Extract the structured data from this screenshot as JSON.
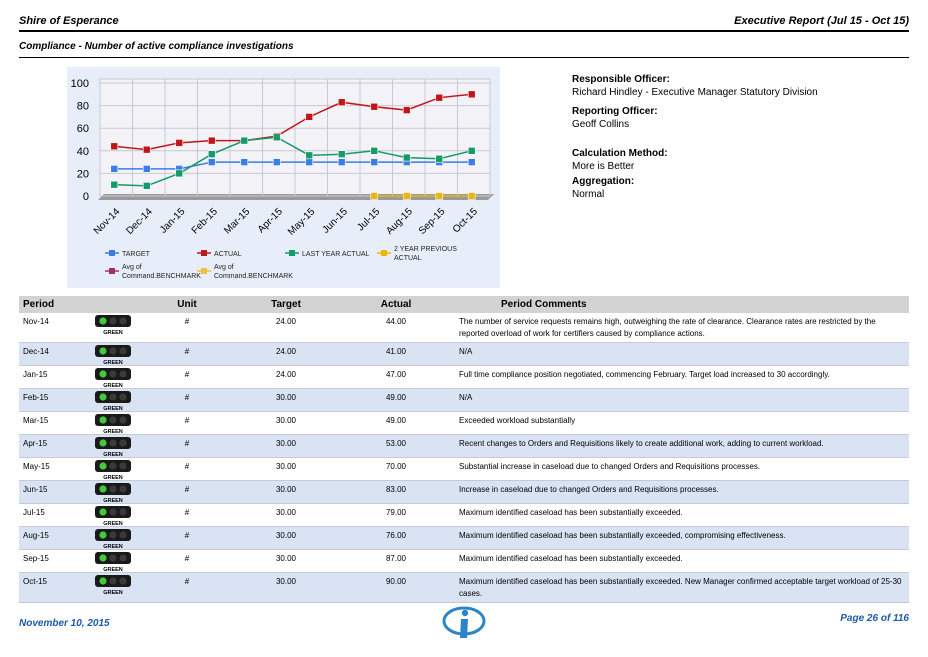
{
  "header": {
    "organisation": "Shire of Esperance",
    "report_title": "Executive Report (Jul 15 - Oct 15)"
  },
  "subtitle": "Compliance - Number of active compliance investigations",
  "colors": {
    "target": "#3a7de6",
    "actual": "#c0161b",
    "last_year": "#169a68",
    "two_year": "#e8b810",
    "benchmark": "#a0306e",
    "benchmark_avg": "#f0c040",
    "row_alt": "#d9e3f3",
    "footer": "#1e5aa8"
  },
  "chart_data": {
    "type": "line",
    "categories": [
      "Nov-14",
      "Dec-14",
      "Jan-15",
      "Feb-15",
      "Mar-15",
      "Apr-15",
      "May-15",
      "Jun-15",
      "Jul-15",
      "Aug-15",
      "Sep-15",
      "Oct-15"
    ],
    "ylim": [
      0,
      100
    ],
    "yticks": [
      0,
      20,
      40,
      60,
      80,
      100
    ],
    "series": [
      {
        "name": "TARGET",
        "color": "#3a7de6",
        "values": [
          24,
          24,
          24,
          30,
          30,
          30,
          30,
          30,
          30,
          30,
          30,
          30
        ]
      },
      {
        "name": "ACTUAL",
        "color": "#c0161b",
        "values": [
          44,
          41,
          47,
          49,
          49,
          53,
          70,
          83,
          79,
          76,
          87,
          90
        ]
      },
      {
        "name": "LAST YEAR ACTUAL",
        "color": "#169a68",
        "values": [
          10,
          9,
          20,
          37,
          49,
          52,
          36,
          37,
          40,
          34,
          33,
          40
        ]
      },
      {
        "name": "2 YEAR PREVIOUS ACTUAL",
        "color": "#e8b810",
        "values": [
          null,
          null,
          null,
          null,
          null,
          null,
          null,
          null,
          0,
          0,
          0,
          0
        ]
      }
    ],
    "legend": [
      {
        "label": "TARGET",
        "color": "#3a7de6"
      },
      {
        "label": "ACTUAL",
        "color": "#c0161b"
      },
      {
        "label": "LAST YEAR ACTUAL",
        "color": "#169a68"
      },
      {
        "label": "2 YEAR PREVIOUS ACTUAL",
        "color": "#e8b810"
      },
      {
        "label": "Avg of Command.BENCHMARK",
        "color": "#a0306e"
      },
      {
        "label": "Avg of Command.BENCHMARK",
        "color": "#f0c040"
      }
    ]
  },
  "info": {
    "responsible_label": "Responsible Officer:",
    "responsible_value": "Richard Hindley - Executive Manager Statutory Division",
    "reporting_label": "Reporting Officer:",
    "reporting_value": "Geoff Collins",
    "calc_label": "Calculation Method:",
    "calc_value": "More is Better",
    "agg_label": "Aggregation:",
    "agg_value": "Normal"
  },
  "table": {
    "headers": {
      "period": "Period",
      "unit": "Unit",
      "target": "Target",
      "actual": "Actual",
      "comments": "Period Comments"
    },
    "status_label": "GREEN",
    "rows": [
      {
        "period": "Nov-14",
        "unit": "#",
        "target": "24.00",
        "actual": "44.00",
        "comment": "The number of service requests remains high, outweighing the rate of clearance. Clearance rates are restricted by the reported overload of work for certifiers caused by compliance actions."
      },
      {
        "period": "Dec-14",
        "unit": "#",
        "target": "24.00",
        "actual": "41.00",
        "comment": "N/A"
      },
      {
        "period": "Jan-15",
        "unit": "#",
        "target": "24.00",
        "actual": "47.00",
        "comment": "Full time compliance position negotiated, commencing February.  Target load increased to 30 accordingly."
      },
      {
        "period": "Feb-15",
        "unit": "#",
        "target": "30.00",
        "actual": "49.00",
        "comment": "N/A"
      },
      {
        "period": "Mar-15",
        "unit": "#",
        "target": "30.00",
        "actual": "49.00",
        "comment": "Exceeded workload substantially"
      },
      {
        "period": "Apr-15",
        "unit": "#",
        "target": "30.00",
        "actual": "53.00",
        "comment": "Recent changes to Orders and Requisitions likely to create additional work, adding to current workload."
      },
      {
        "period": "May-15",
        "unit": "#",
        "target": "30.00",
        "actual": "70.00",
        "comment": "Substantial increase in caseload due to changed Orders and Requisitions processes."
      },
      {
        "period": "Jun-15",
        "unit": "#",
        "target": "30.00",
        "actual": "83.00",
        "comment": "Increase in caseload due to changed Orders and Requisitions processes."
      },
      {
        "period": "Jul-15",
        "unit": "#",
        "target": "30.00",
        "actual": "79.00",
        "comment": "Maximum identified caseload has been substantially exceeded."
      },
      {
        "period": "Aug-15",
        "unit": "#",
        "target": "30.00",
        "actual": "76.00",
        "comment": "Maximum identified caseload has been substantially exceeded, compromising effectiveness."
      },
      {
        "period": "Sep-15",
        "unit": "#",
        "target": "30.00",
        "actual": "87.00",
        "comment": "Maximum identified caseload has been substantially exceeded."
      },
      {
        "period": "Oct-15",
        "unit": "#",
        "target": "30.00",
        "actual": "90.00",
        "comment": "Maximum identified caseload has been substantially exceeded. New Manager confirmed acceptable target workload of 25-30 cases."
      }
    ]
  },
  "footer": {
    "date": "November 10, 2015",
    "page": "Page 26 of 116"
  }
}
